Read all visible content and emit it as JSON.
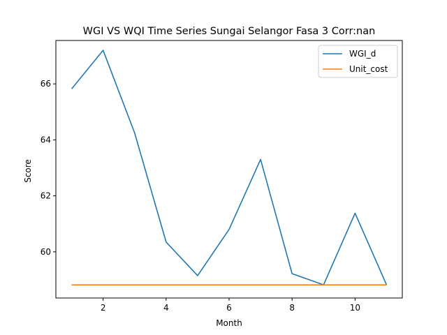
{
  "chart_data": {
    "type": "line",
    "title": "WGI VS WQI Time Series Sungai Selangor Fasa 3 Corr:nan",
    "xlabel": "Month",
    "ylabel": "Score",
    "xlim": [
      0.5,
      11.5
    ],
    "ylim": [
      58.35,
      67.55
    ],
    "xticks": [
      2,
      4,
      6,
      8,
      10
    ],
    "yticks": [
      60,
      62,
      64,
      66
    ],
    "grid": false,
    "legend_position": "top-right",
    "x": [
      1,
      2,
      3,
      4,
      5,
      6,
      7,
      8,
      9,
      10,
      11
    ],
    "series": [
      {
        "name": "WGI_d",
        "color": "#1f77b4",
        "values": [
          65.82,
          67.2,
          64.25,
          60.35,
          59.15,
          60.8,
          63.3,
          59.22,
          58.82,
          61.38,
          58.82
        ]
      },
      {
        "name": "Unit_cost",
        "color": "#ff7f0e",
        "values": [
          58.82,
          58.82,
          58.82,
          58.82,
          58.82,
          58.82,
          58.82,
          58.82,
          58.82,
          58.82,
          58.82
        ]
      }
    ]
  }
}
